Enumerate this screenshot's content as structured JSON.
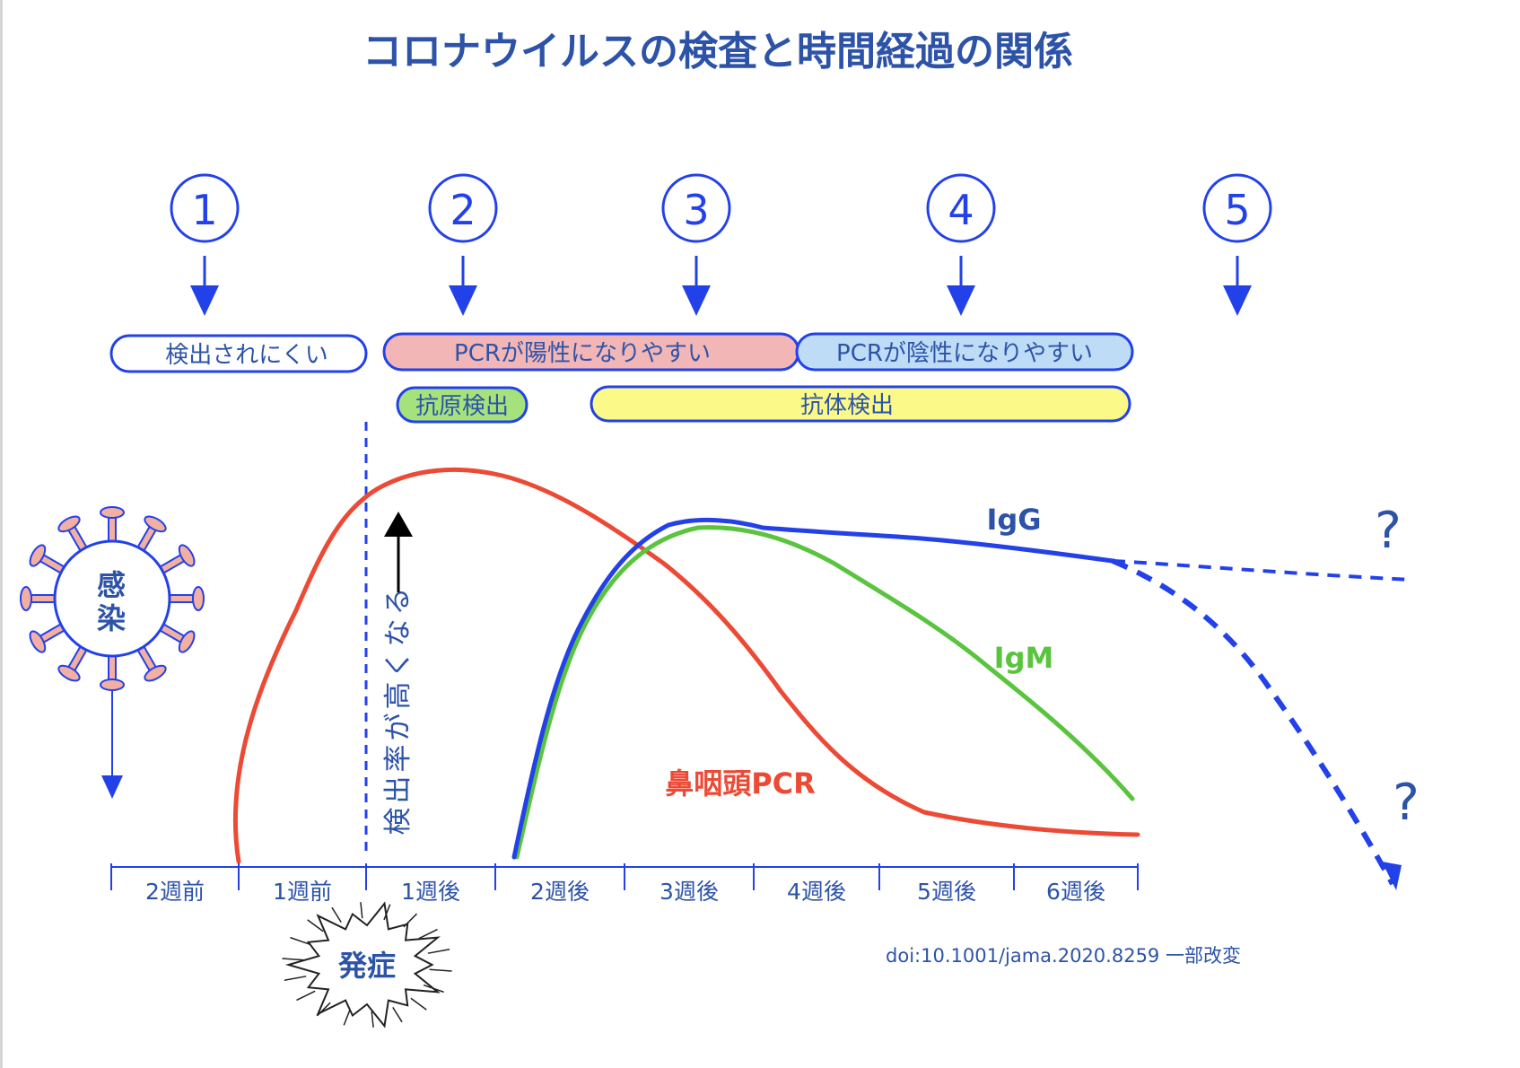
{
  "title": "コロナウイルスの検査と時間経過の関係",
  "stages": [
    "1",
    "2",
    "3",
    "4",
    "5"
  ],
  "pills": {
    "hard_to_detect": "検出されにくい",
    "pcr_positive": "PCRが陽性になりやすい",
    "pcr_negative": "PCRが陰性になりやすい",
    "antigen": "抗原検出",
    "antibody": "抗体検出"
  },
  "virus_label": [
    "感",
    "染"
  ],
  "vertical_note": [
    "検",
    "出",
    "率",
    "が",
    "高",
    "く",
    "な",
    "る"
  ],
  "onset_label": "発症",
  "curve_labels": {
    "igg": "IgG",
    "igm": "IgM",
    "pcr": "鼻咽頭PCR",
    "unknown_1": "?",
    "unknown_2": "?"
  },
  "axis_ticks": [
    "2週前",
    "1週前",
    "1週後",
    "2週後",
    "3週後",
    "4週後",
    "5週後",
    "6週後"
  ],
  "citation": "doi:10.1001/jama.2020.8259 一部改変",
  "colors": {
    "title": "#2d53a8",
    "accent_blue": "#2341e8",
    "pcr_red": "#ec4a35",
    "igm_green": "#5ac43e",
    "pill_pink": "#f3b6b6",
    "pill_lightblue": "#bfdcf6",
    "pill_green": "#a6e27c",
    "pill_yellow": "#fbfa88",
    "virus_spike": "#f2b0a3"
  }
}
